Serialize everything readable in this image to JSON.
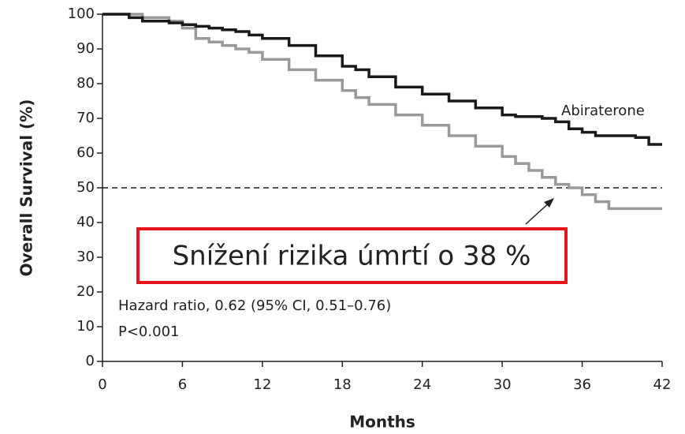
{
  "chart_data": {
    "type": "step",
    "y_label": "Overall Survival (%)",
    "x_label": "Months",
    "x": [
      0,
      2,
      3,
      5,
      6,
      7,
      8,
      9,
      10,
      11,
      12,
      14,
      16,
      18,
      19,
      20,
      22,
      24,
      26,
      28,
      30,
      31,
      32,
      33,
      34,
      35,
      36,
      37,
      38,
      40,
      41,
      42
    ],
    "series": [
      {
        "name": "Abiraterone",
        "color": "#1a1a1a",
        "values": [
          100,
          99,
          98,
          97.5,
          97,
          96.5,
          96,
          95.5,
          95,
          94,
          93,
          91,
          88,
          85,
          84,
          82,
          79,
          77,
          75,
          73,
          71,
          70.5,
          70.5,
          70,
          69,
          67,
          66,
          65,
          65,
          64.5,
          62.5,
          62.5
        ]
      },
      {
        "color": "#999999",
        "values": [
          100,
          100,
          99,
          98,
          96,
          93,
          92,
          91,
          90,
          89,
          87,
          84,
          81,
          78,
          76,
          74,
          71,
          68,
          65,
          62,
          59,
          57,
          55,
          53,
          51,
          50,
          48,
          46,
          44,
          44,
          44,
          44
        ]
      }
    ],
    "xlim": [
      0,
      42
    ],
    "xticks": [
      0,
      6,
      12,
      18,
      24,
      30,
      36,
      42
    ],
    "ylim": [
      0,
      100
    ],
    "yticks": [
      0,
      10,
      20,
      30,
      40,
      50,
      60,
      70,
      80,
      90,
      100
    ],
    "reference_line": 50,
    "annotations": [
      "Hazard ratio, 0.62 (95% CI, 0.51–0.76)",
      "P<0.001"
    ],
    "callout": "Snížení rizika úmrtí o 38 %"
  }
}
